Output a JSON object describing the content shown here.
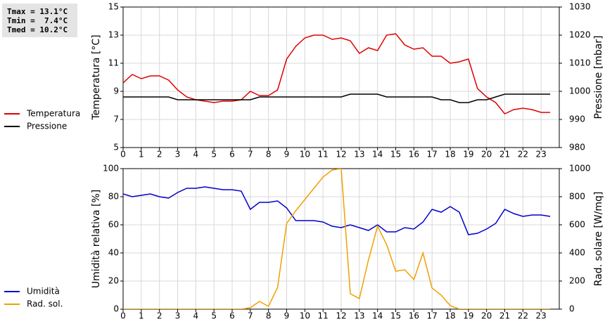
{
  "stats": [
    "Tmax = 13.1°C",
    "Tmin =  7.4°C",
    "Tmed = 10.2°C"
  ],
  "chart_data": [
    {
      "type": "line",
      "ylabel": "Temperatura [°C]",
      "y2label": "Pressione [mbar]",
      "x": [
        0,
        0.5,
        1,
        1.5,
        2,
        2.5,
        3,
        3.5,
        4,
        4.5,
        5,
        5.5,
        6,
        6.5,
        7,
        7.5,
        8,
        8.5,
        9,
        9.5,
        10,
        10.5,
        11,
        11.5,
        12,
        12.5,
        13,
        13.5,
        14,
        14.5,
        15,
        15.5,
        16,
        16.5,
        17,
        17.5,
        18,
        18.5,
        19,
        19.5,
        20,
        20.5,
        21,
        21.5,
        22,
        22.5,
        23,
        23.5
      ],
      "xlim": [
        0,
        24
      ],
      "xticks": [
        0,
        1,
        2,
        3,
        4,
        5,
        6,
        7,
        8,
        9,
        10,
        11,
        12,
        13,
        14,
        15,
        16,
        17,
        18,
        19,
        20,
        21,
        22,
        23
      ],
      "ylim": [
        5,
        15
      ],
      "yticks": [
        5,
        7,
        9,
        11,
        13,
        15
      ],
      "y2lim": [
        980,
        1030
      ],
      "y2ticks": [
        980,
        990,
        1000,
        1010,
        1020,
        1030
      ],
      "grid": true,
      "series": [
        {
          "name": "Temperatura",
          "color": "#e00000",
          "values": [
            9.6,
            10.2,
            9.9,
            10.1,
            10.1,
            9.8,
            9.1,
            8.6,
            8.4,
            8.3,
            8.2,
            8.3,
            8.3,
            8.4,
            9.0,
            8.7,
            8.7,
            9.1,
            11.3,
            12.2,
            12.8,
            13.0,
            13.0,
            12.7,
            12.8,
            12.6,
            11.7,
            12.1,
            11.9,
            13.0,
            13.1,
            12.3,
            12.0,
            12.1,
            11.5,
            11.5,
            11.0,
            11.1,
            11.3,
            9.2,
            8.6,
            8.2,
            7.4,
            7.7,
            7.8,
            7.7,
            7.5,
            7.5
          ]
        },
        {
          "name": "Pressione",
          "color": "#000000",
          "axis": "y2",
          "values": [
            998,
            998,
            998,
            998,
            998,
            998,
            997,
            997,
            997,
            997,
            997,
            997,
            997,
            997,
            997,
            998,
            998,
            998,
            998,
            998,
            998,
            998,
            998,
            998,
            998,
            999,
            999,
            999,
            999,
            998,
            998,
            998,
            998,
            998,
            998,
            997,
            997,
            996,
            996,
            997,
            997,
            998,
            999,
            999,
            999,
            999,
            999,
            999
          ]
        }
      ]
    },
    {
      "type": "line",
      "ylabel": "Umidità relativa [%]",
      "y2label": "Rad. solare [W/mq]",
      "x": [
        0,
        0.5,
        1,
        1.5,
        2,
        2.5,
        3,
        3.5,
        4,
        4.5,
        5,
        5.5,
        6,
        6.5,
        7,
        7.5,
        8,
        8.5,
        9,
        9.5,
        10,
        10.5,
        11,
        11.5,
        12,
        12.5,
        13,
        13.5,
        14,
        14.5,
        15,
        15.5,
        16,
        16.5,
        17,
        17.5,
        18,
        18.5,
        19,
        19.5,
        20,
        20.5,
        21,
        21.5,
        22,
        22.5,
        23,
        23.5
      ],
      "xlim": [
        0,
        24
      ],
      "xticks": [
        0,
        1,
        2,
        3,
        4,
        5,
        6,
        7,
        8,
        9,
        10,
        11,
        12,
        13,
        14,
        15,
        16,
        17,
        18,
        19,
        20,
        21,
        22,
        23
      ],
      "ylim": [
        0,
        100
      ],
      "yticks": [
        0,
        20,
        40,
        60,
        80,
        100
      ],
      "y2lim": [
        0,
        1000
      ],
      "y2ticks": [
        0,
        200,
        400,
        600,
        800,
        1000
      ],
      "grid": true,
      "series": [
        {
          "name": "Umidità",
          "color": "#0000cc",
          "values": [
            82,
            80,
            81,
            82,
            80,
            79,
            83,
            86,
            86,
            87,
            86,
            85,
            85,
            84,
            71,
            76,
            76,
            77,
            72,
            63,
            63,
            63,
            62,
            59,
            58,
            60,
            58,
            56,
            60,
            55,
            55,
            58,
            57,
            62,
            71,
            69,
            73,
            69,
            53,
            54,
            57,
            61,
            71,
            68,
            66,
            67,
            67,
            66
          ]
        },
        {
          "name": "Rad. sol.",
          "color": "#f0a000",
          "axis": "y2",
          "values": [
            0,
            0,
            0,
            0,
            0,
            0,
            0,
            0,
            0,
            0,
            0,
            0,
            0,
            0,
            10,
            55,
            20,
            155,
            610,
            700,
            780,
            860,
            940,
            990,
            1000,
            110,
            75,
            350,
            590,
            460,
            270,
            280,
            210,
            400,
            150,
            100,
            25,
            0,
            0,
            0,
            0,
            0,
            0,
            0,
            0,
            0,
            0,
            0
          ]
        }
      ]
    }
  ]
}
